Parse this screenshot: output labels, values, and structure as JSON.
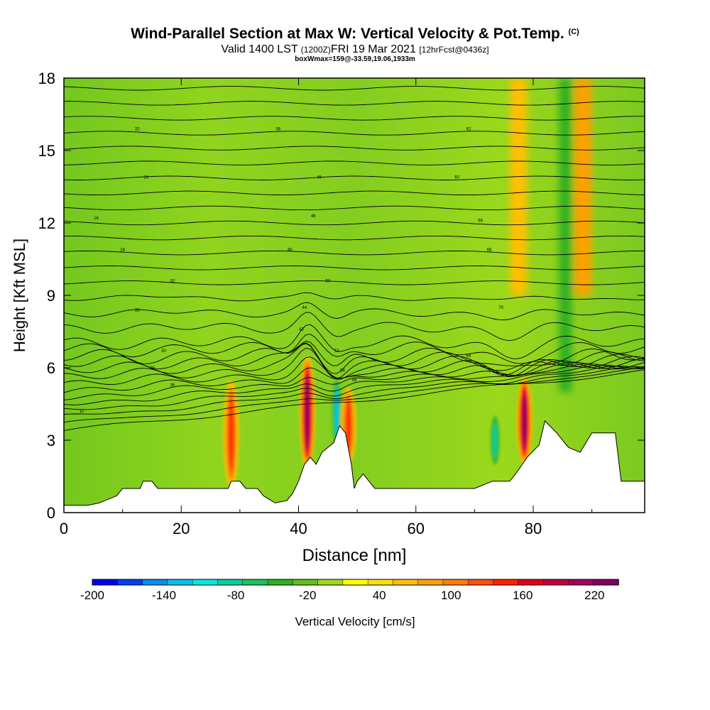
{
  "header": {
    "title": "Wind-Parallel Section at Max W: Vertical Velocity & Pot.Temp.",
    "copyright": "(C)",
    "valid_prefix": "Valid 1400 LST",
    "valid_utc": "(1200Z)",
    "valid_date": "FRI 19 Mar 2021",
    "forecast": "[12hrFcst@0436z]",
    "box_info": "boxWmax=159@-33.59,19.06,1933m"
  },
  "chart_data": {
    "type": "heatmap",
    "title": "Wind-Parallel Section at Max W: Vertical Velocity & Pot.Temp.",
    "xlabel": "Distance [nm]",
    "ylabel": "Height [Kft MSL]",
    "xlim": [
      0,
      99
    ],
    "ylim": [
      0,
      18
    ],
    "x_ticks": [
      0,
      20,
      40,
      60,
      80
    ],
    "y_ticks": [
      0,
      3,
      6,
      9,
      12,
      15,
      18
    ],
    "colorbar": {
      "label": "Vertical Velocity [cm/s]",
      "min": -200,
      "max": 240,
      "step": 20,
      "tick_labels": [
        "-200",
        "-140",
        "-80",
        "-20",
        "40",
        "100",
        "160",
        "220"
      ],
      "colors": [
        "#0000f0",
        "#0040f0",
        "#0090f0",
        "#00c0f0",
        "#00e8e8",
        "#00d0a0",
        "#20c060",
        "#30b020",
        "#60c020",
        "#a0d820",
        "#ffff00",
        "#ffe000",
        "#ffc000",
        "#ffa000",
        "#ff8000",
        "#ff5000",
        "#ff2000",
        "#e00020",
        "#c00040",
        "#a00060",
        "#800060"
      ]
    },
    "terrain_kft": [
      [
        0,
        0.3
      ],
      [
        4,
        0.3
      ],
      [
        6,
        0.4
      ],
      [
        9,
        0.7
      ],
      [
        10,
        1.0
      ],
      [
        13,
        1.0
      ],
      [
        13.5,
        1.3
      ],
      [
        15,
        1.3
      ],
      [
        16,
        1.0
      ],
      [
        20,
        1.0
      ],
      [
        28,
        1.0
      ],
      [
        28.5,
        1.3
      ],
      [
        30,
        1.3
      ],
      [
        31,
        1.0
      ],
      [
        33,
        1.0
      ],
      [
        34,
        0.7
      ],
      [
        36,
        0.4
      ],
      [
        38,
        0.5
      ],
      [
        39,
        0.8
      ],
      [
        40,
        1.3
      ],
      [
        41,
        2.0
      ],
      [
        42,
        2.3
      ],
      [
        43,
        2.0
      ],
      [
        44,
        2.5
      ],
      [
        45,
        2.7
      ],
      [
        46,
        2.9
      ],
      [
        47,
        3.6
      ],
      [
        48,
        3.3
      ],
      [
        49,
        2.0
      ],
      [
        49.5,
        1.0
      ],
      [
        50,
        1.3
      ],
      [
        51,
        1.6
      ],
      [
        52,
        1.3
      ],
      [
        53,
        1.0
      ],
      [
        60,
        1.0
      ],
      [
        70,
        1.0
      ],
      [
        73,
        1.3
      ],
      [
        76,
        1.3
      ],
      [
        77,
        1.6
      ],
      [
        79,
        2.3
      ],
      [
        81,
        2.8
      ],
      [
        82,
        3.8
      ],
      [
        84,
        3.3
      ],
      [
        86,
        2.7
      ],
      [
        88,
        2.5
      ],
      [
        89,
        2.9
      ],
      [
        90,
        3.3
      ],
      [
        94,
        3.3
      ],
      [
        95,
        1.3
      ],
      [
        99,
        1.3
      ]
    ],
    "updrafts": [
      {
        "x": 41.5,
        "y_min": 1.8,
        "y_max": 6.5,
        "peak_cms": 200
      },
      {
        "x": 78.5,
        "y_min": 2.0,
        "y_max": 5.6,
        "peak_cms": 170
      },
      {
        "x": 28.5,
        "y_min": 1.0,
        "y_max": 5.5,
        "peak_cms": 110
      },
      {
        "x": 48.5,
        "y_min": 2.0,
        "y_max": 5.2,
        "peak_cms": 120
      },
      {
        "x": 77.5,
        "y_min": 9.0,
        "y_max": 18.0,
        "peak_cms": 50
      },
      {
        "x": 88.5,
        "y_min": 9.0,
        "y_max": 18.0,
        "peak_cms": 60
      }
    ],
    "downdrafts": [
      {
        "x": 46.5,
        "y_min": 2.8,
        "y_max": 5.5,
        "peak_cms": -100
      },
      {
        "x": 73.5,
        "y_min": 2.0,
        "y_max": 4.0,
        "peak_cms": -80
      },
      {
        "x": 85.5,
        "y_min": 5.0,
        "y_max": 18.0,
        "peak_cms": -60
      }
    ],
    "theta_contour_labels": [
      "12",
      "16",
      "18",
      "20",
      "24",
      "28",
      "30",
      "32",
      "34",
      "36",
      "38",
      "40",
      "42",
      "44",
      "46",
      "48",
      "50",
      "52",
      "54",
      "56",
      "60",
      "62",
      "64",
      "66",
      "68",
      "70"
    ]
  }
}
